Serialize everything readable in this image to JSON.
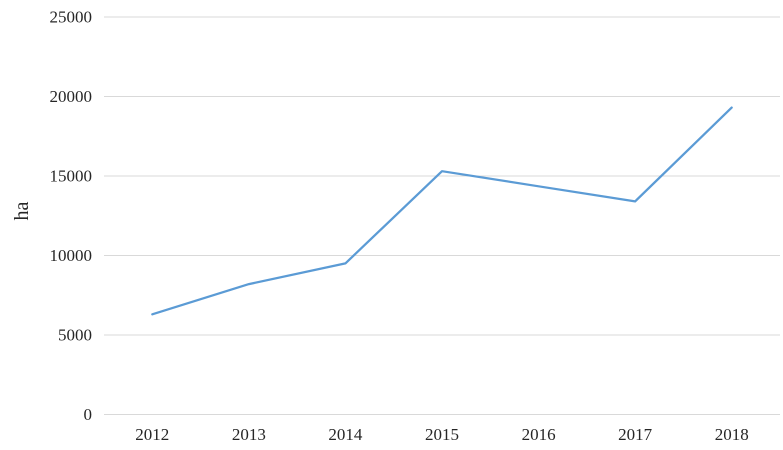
{
  "chart_data": {
    "type": "line",
    "title": "",
    "xlabel": "",
    "ylabel": "ha",
    "categories": [
      "2012",
      "2013",
      "2014",
      "2015",
      "2016",
      "2017",
      "2018"
    ],
    "series": [
      {
        "name": "ha",
        "values": [
          6300,
          8200,
          9500,
          15300,
          14350,
          13400,
          19300
        ]
      }
    ],
    "ylim": [
      0,
      25000
    ],
    "ytick_interval": 5000,
    "yticks": [
      0,
      5000,
      10000,
      15000,
      20000,
      25000
    ],
    "grid": true,
    "legend_position": "none",
    "colors": {
      "line": "#5b9bd5",
      "gridline": "#d9d9d9",
      "text": "#262626",
      "background": "#ffffff"
    }
  }
}
